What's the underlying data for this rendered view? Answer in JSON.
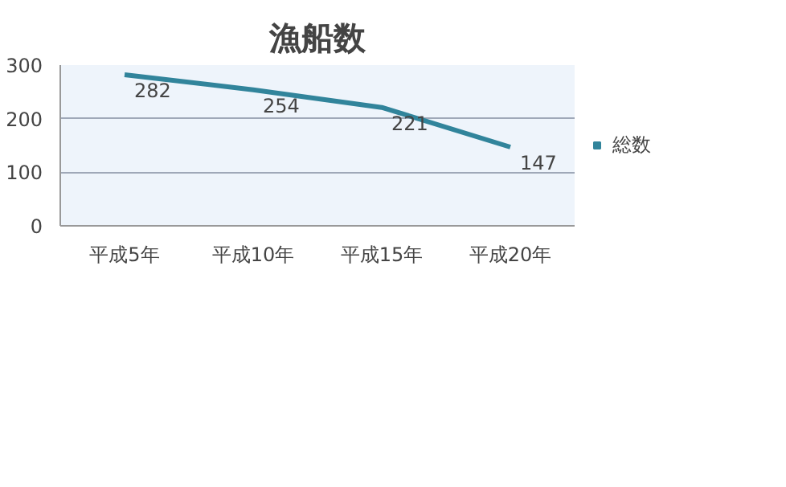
{
  "chart_data": {
    "type": "line",
    "title": "漁船数",
    "categories": [
      "平成5年",
      "平成10年",
      "平成15年",
      "平成20年"
    ],
    "series": [
      {
        "name": "総数",
        "color": "#31849b",
        "values": [
          282,
          254,
          221,
          147
        ]
      }
    ],
    "ylim": [
      0,
      300
    ],
    "yticks": [
      0,
      100,
      200,
      300
    ],
    "grid": "y",
    "legend": "right",
    "data_labels": true
  }
}
